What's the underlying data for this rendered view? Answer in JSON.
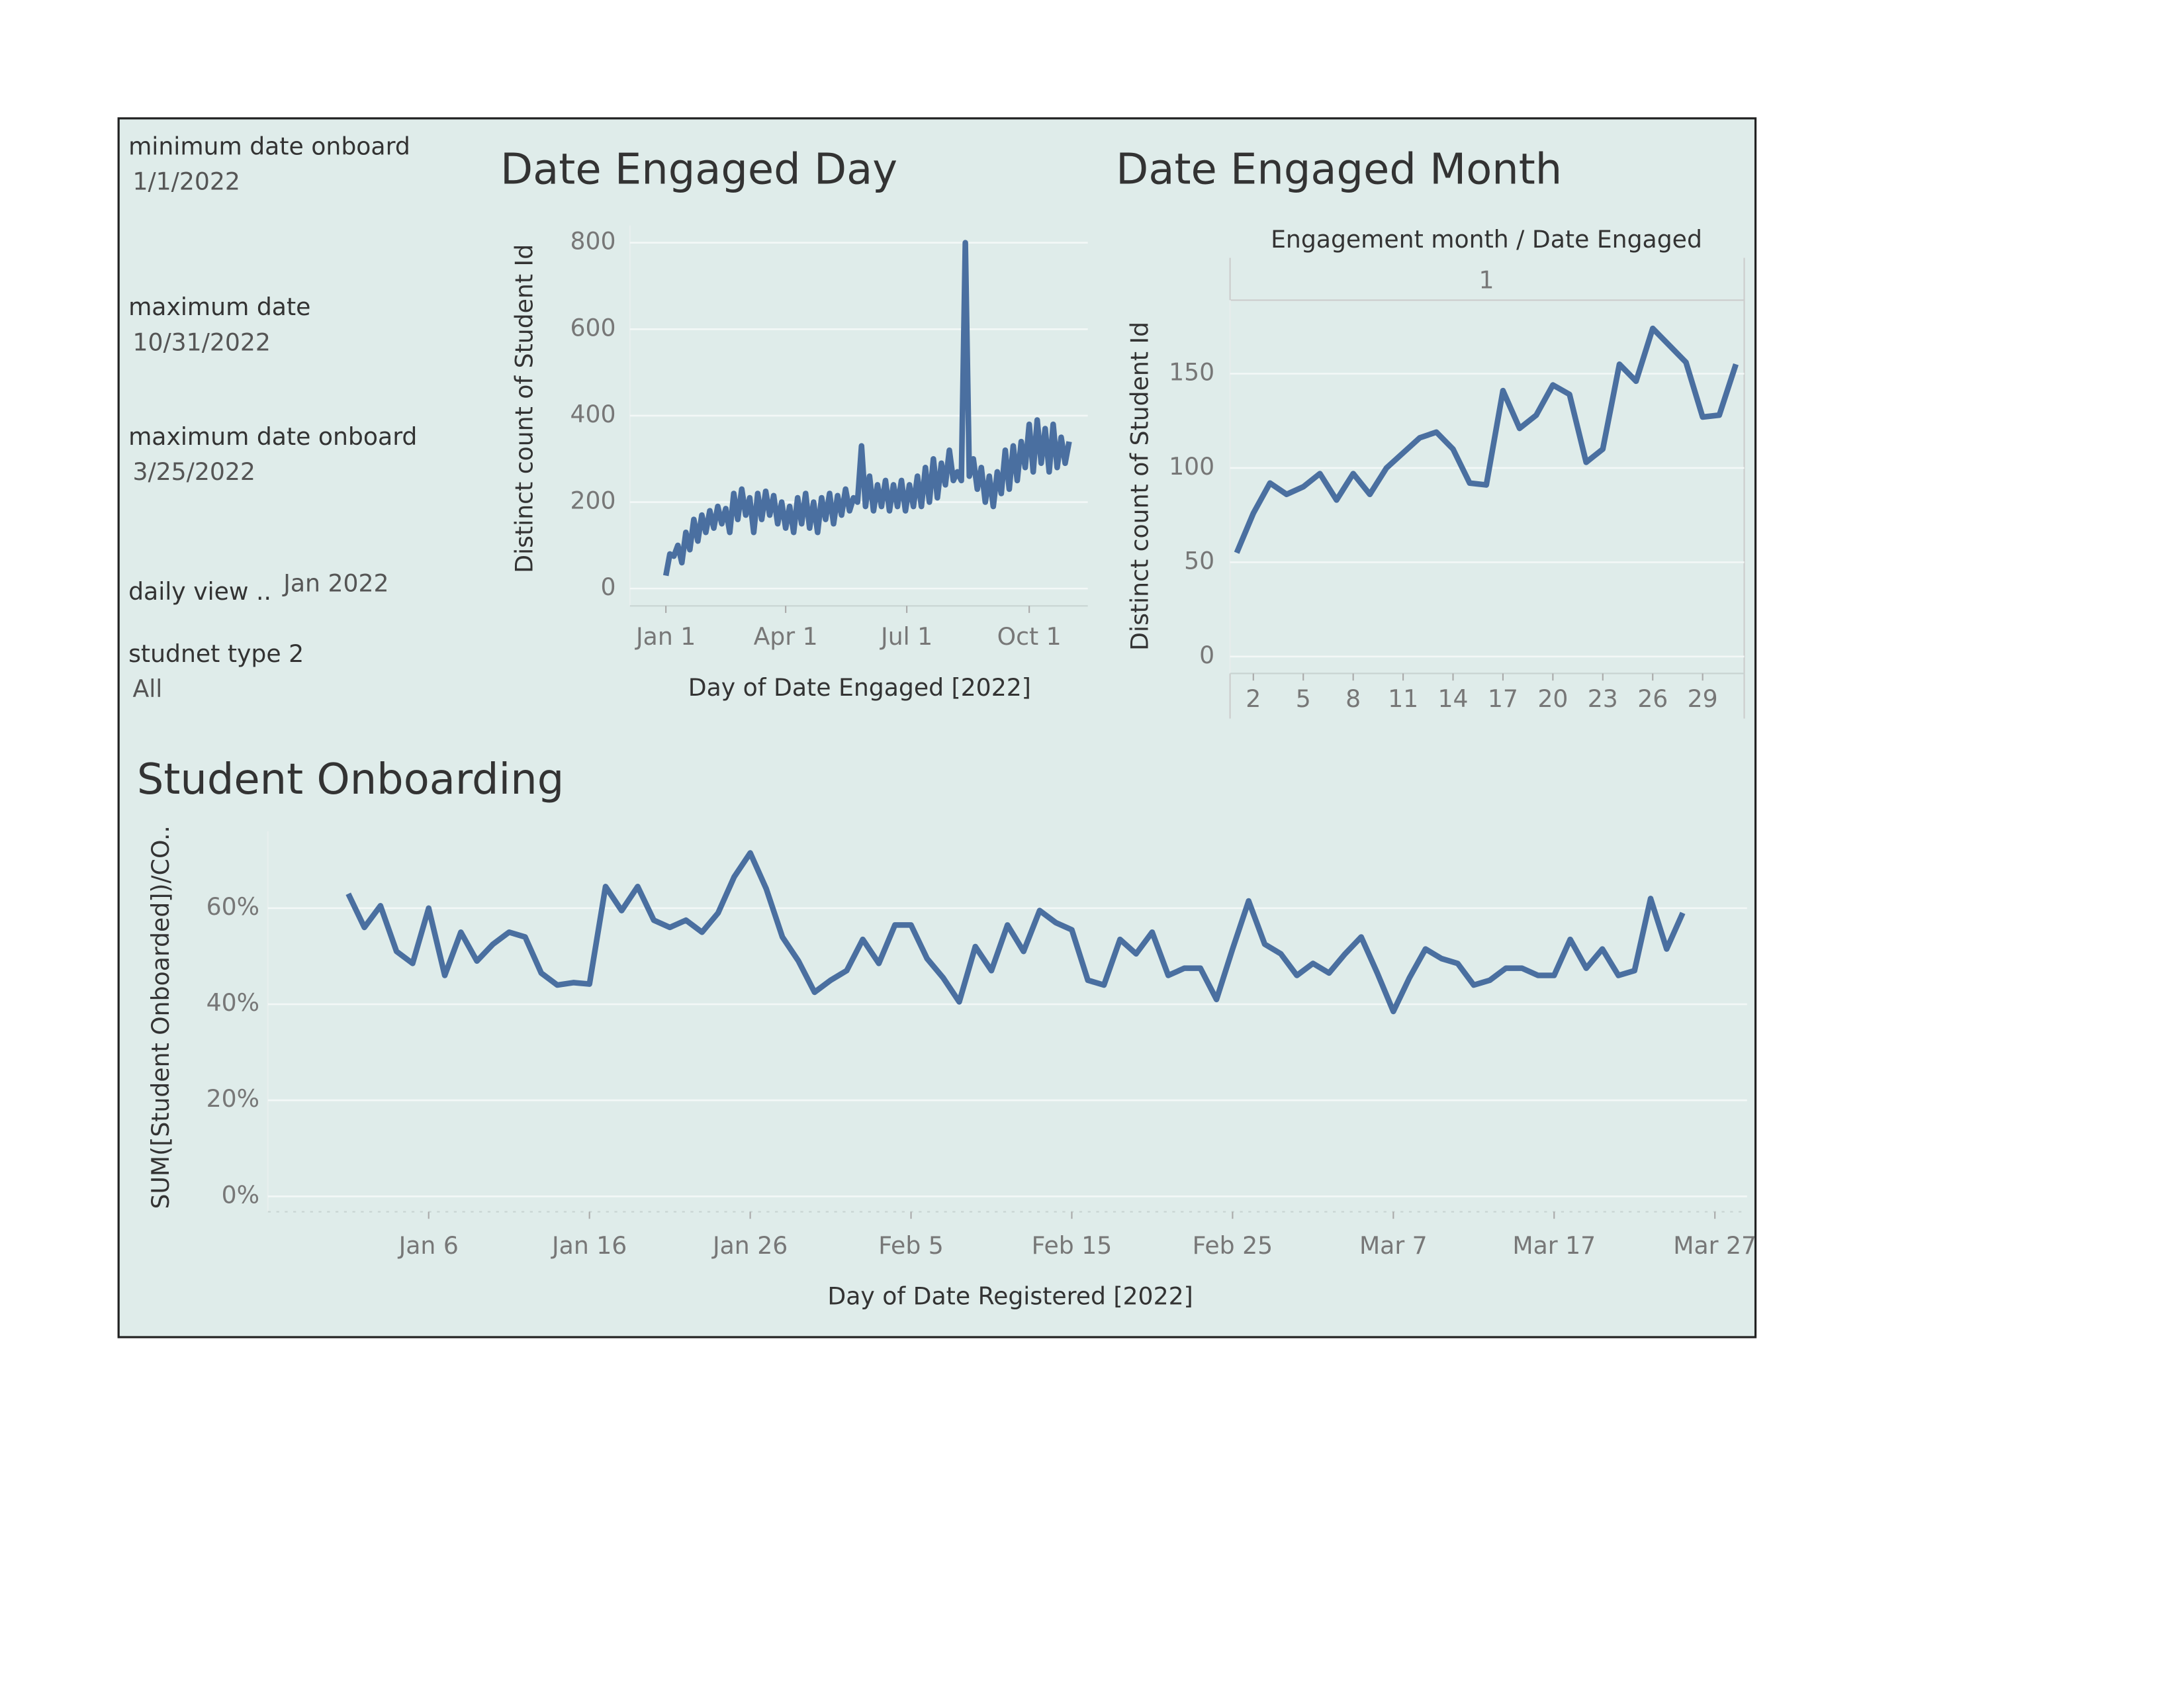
{
  "filters": [
    {
      "label": "minimum date onboard",
      "value": "1/1/2022"
    },
    {
      "label": "maximum date",
      "value": "10/31/2022"
    },
    {
      "label": "maximum date onboard",
      "value": "3/25/2022"
    },
    {
      "label": "daily view ..",
      "value": "Jan 2022"
    },
    {
      "label": "studnet type 2",
      "value": "All"
    }
  ],
  "chart_data": [
    {
      "type": "line",
      "title": "Date Engaged Day",
      "x_label": "Day of Date Engaged [2022]",
      "y_label": "Distinct count of Student Id",
      "color": "#4a6fa0",
      "grid": true,
      "x": [
        "2022-01-01",
        "2022-01-04",
        "2022-01-07",
        "2022-01-10",
        "2022-01-13",
        "2022-01-16",
        "2022-01-19",
        "2022-01-22",
        "2022-01-25",
        "2022-01-28",
        "2022-01-31",
        "2022-02-03",
        "2022-02-06",
        "2022-02-09",
        "2022-02-12",
        "2022-02-15",
        "2022-02-18",
        "2022-02-21",
        "2022-02-24",
        "2022-02-27",
        "2022-03-02",
        "2022-03-05",
        "2022-03-08",
        "2022-03-11",
        "2022-03-14",
        "2022-03-17",
        "2022-03-20",
        "2022-03-23",
        "2022-03-26",
        "2022-03-29",
        "2022-04-01",
        "2022-04-04",
        "2022-04-07",
        "2022-04-10",
        "2022-04-13",
        "2022-04-16",
        "2022-04-19",
        "2022-04-22",
        "2022-04-25",
        "2022-04-28",
        "2022-05-01",
        "2022-05-04",
        "2022-05-07",
        "2022-05-10",
        "2022-05-13",
        "2022-05-16",
        "2022-05-19",
        "2022-05-22",
        "2022-05-25",
        "2022-05-28",
        "2022-05-31",
        "2022-06-03",
        "2022-06-06",
        "2022-06-09",
        "2022-06-12",
        "2022-06-15",
        "2022-06-18",
        "2022-06-21",
        "2022-06-24",
        "2022-06-27",
        "2022-06-30",
        "2022-07-03",
        "2022-07-06",
        "2022-07-09",
        "2022-07-12",
        "2022-07-15",
        "2022-07-18",
        "2022-07-21",
        "2022-07-24",
        "2022-07-27",
        "2022-07-30",
        "2022-08-02",
        "2022-08-05",
        "2022-08-08",
        "2022-08-11",
        "2022-08-14",
        "2022-08-17",
        "2022-08-20",
        "2022-08-23",
        "2022-08-26",
        "2022-08-29",
        "2022-09-01",
        "2022-09-04",
        "2022-09-07",
        "2022-09-10",
        "2022-09-13",
        "2022-09-16",
        "2022-09-19",
        "2022-09-22",
        "2022-09-25",
        "2022-09-28",
        "2022-10-01",
        "2022-10-04",
        "2022-10-07",
        "2022-10-10",
        "2022-10-13",
        "2022-10-16",
        "2022-10-19",
        "2022-10-22",
        "2022-10-25",
        "2022-10-28",
        "2022-10-31"
      ],
      "values": [
        30,
        80,
        75,
        100,
        60,
        130,
        90,
        160,
        110,
        170,
        130,
        180,
        140,
        190,
        150,
        185,
        130,
        220,
        160,
        230,
        170,
        210,
        130,
        220,
        160,
        225,
        170,
        215,
        150,
        200,
        140,
        190,
        130,
        210,
        150,
        220,
        140,
        200,
        130,
        210,
        160,
        220,
        150,
        215,
        170,
        230,
        180,
        210,
        200,
        330,
        190,
        260,
        180,
        240,
        190,
        250,
        180,
        240,
        190,
        250,
        180,
        240,
        190,
        260,
        190,
        280,
        200,
        300,
        210,
        290,
        240,
        320,
        250,
        270,
        250,
        800,
        260,
        300,
        230,
        280,
        200,
        260,
        190,
        270,
        220,
        320,
        230,
        330,
        250,
        340,
        280,
        380,
        270,
        390,
        290,
        370,
        270,
        380,
        280,
        350,
        290,
        340
      ],
      "xlim": [
        "2021-12-05",
        "2022-11-14"
      ],
      "xticks": [
        {
          "value": "2022-01-01",
          "label": "Jan 1"
        },
        {
          "value": "2022-04-01",
          "label": "Apr 1"
        },
        {
          "value": "2022-07-01",
          "label": "Jul 1"
        },
        {
          "value": "2022-10-01",
          "label": "Oct 1"
        }
      ],
      "ylim": [
        -40,
        840
      ],
      "yticks": [
        0,
        200,
        400,
        600,
        800
      ]
    },
    {
      "type": "line",
      "title": "Date Engaged Month",
      "header": "Engagement  month  /  Date Engaged",
      "panel": "1",
      "y_label": "Distinct count of Student Id",
      "color": "#4a6fa0",
      "grid": true,
      "x": [
        1,
        2,
        3,
        4,
        5,
        6,
        7,
        8,
        9,
        10,
        11,
        12,
        13,
        14,
        15,
        16,
        17,
        18,
        19,
        20,
        21,
        22,
        23,
        24,
        25,
        26,
        27,
        28,
        29,
        30,
        31
      ],
      "values": [
        55,
        76,
        92,
        86,
        90,
        97,
        83,
        97,
        86,
        100,
        108,
        116,
        119,
        110,
        92,
        91,
        141,
        121,
        128,
        144,
        139,
        103,
        110,
        155,
        146,
        174,
        165,
        156,
        127,
        128,
        155
      ],
      "xlim": [
        0.6,
        31.5
      ],
      "xticks": [
        2,
        5,
        8,
        11,
        14,
        17,
        20,
        23,
        26,
        29
      ],
      "ylim": [
        -9,
        189
      ],
      "yticks": [
        0,
        50,
        100,
        150
      ]
    },
    {
      "type": "line",
      "title": "Student Onboarding",
      "x_label": "Day of Date Registered [2022]",
      "y_label": "SUM([Student Onboarded])/CO..",
      "color": "#4a6fa0",
      "grid": true,
      "x": [
        "2022-01-01",
        "2022-01-02",
        "2022-01-03",
        "2022-01-04",
        "2022-01-05",
        "2022-01-06",
        "2022-01-07",
        "2022-01-08",
        "2022-01-09",
        "2022-01-10",
        "2022-01-11",
        "2022-01-12",
        "2022-01-13",
        "2022-01-14",
        "2022-01-15",
        "2022-01-16",
        "2022-01-17",
        "2022-01-18",
        "2022-01-19",
        "2022-01-20",
        "2022-01-21",
        "2022-01-22",
        "2022-01-23",
        "2022-01-24",
        "2022-01-25",
        "2022-01-26",
        "2022-01-27",
        "2022-01-28",
        "2022-01-29",
        "2022-01-30",
        "2022-01-31",
        "2022-02-01",
        "2022-02-02",
        "2022-02-03",
        "2022-02-04",
        "2022-02-05",
        "2022-02-06",
        "2022-02-07",
        "2022-02-08",
        "2022-02-09",
        "2022-02-10",
        "2022-02-11",
        "2022-02-12",
        "2022-02-13",
        "2022-02-14",
        "2022-02-15",
        "2022-02-16",
        "2022-02-17",
        "2022-02-18",
        "2022-02-19",
        "2022-02-20",
        "2022-02-21",
        "2022-02-22",
        "2022-02-23",
        "2022-02-24",
        "2022-02-25",
        "2022-02-26",
        "2022-02-27",
        "2022-02-28",
        "2022-03-01",
        "2022-03-02",
        "2022-03-03",
        "2022-03-04",
        "2022-03-05",
        "2022-03-06",
        "2022-03-07",
        "2022-03-08",
        "2022-03-09",
        "2022-03-10",
        "2022-03-11",
        "2022-03-12",
        "2022-03-13",
        "2022-03-14",
        "2022-03-15",
        "2022-03-16",
        "2022-03-17",
        "2022-03-18",
        "2022-03-19",
        "2022-03-20",
        "2022-03-21",
        "2022-03-22",
        "2022-03-23",
        "2022-03-24",
        "2022-03-25"
      ],
      "values": [
        63,
        56,
        60.5,
        51,
        48.5,
        60,
        46,
        55,
        49,
        52.5,
        55,
        54,
        46.5,
        44,
        44.5,
        44.2,
        64.5,
        59.5,
        64.5,
        57.5,
        56,
        57.5,
        55,
        59,
        66.5,
        71.5,
        64,
        54,
        49,
        42.5,
        45,
        47,
        53.5,
        48.5,
        56.5,
        56.5,
        49.5,
        45.5,
        40.5,
        52,
        47,
        56.5,
        51,
        59.5,
        57,
        55.5,
        45,
        44,
        53.5,
        50.5,
        55,
        46,
        47.5,
        47.5,
        41,
        51.5,
        61.5,
        52.5,
        50.5,
        46,
        48.5,
        46.5,
        50.5,
        54,
        46.5,
        38.5,
        45.5,
        51.5,
        49.5,
        48.5,
        44,
        45,
        47.5,
        47.5,
        46,
        46,
        53.5,
        47.5,
        51.5,
        46,
        47,
        62,
        51.5,
        59
      ],
      "xlim": [
        "2021-12-27",
        "2022-03-29"
      ],
      "xticks": [
        {
          "value": "2022-01-06",
          "label": "Jan 6"
        },
        {
          "value": "2022-01-16",
          "label": "Jan 16"
        },
        {
          "value": "2022-01-26",
          "label": "Jan 26"
        },
        {
          "value": "2022-02-05",
          "label": "Feb 5"
        },
        {
          "value": "2022-02-15",
          "label": "Feb 15"
        },
        {
          "value": "2022-02-25",
          "label": "Feb 25"
        },
        {
          "value": "2022-03-07",
          "label": "Mar 7"
        },
        {
          "value": "2022-03-17",
          "label": "Mar 17"
        },
        {
          "value": "2022-03-27",
          "label": "Mar 27"
        }
      ],
      "ylim": [
        -3.2,
        76
      ],
      "yticks": [
        {
          "value": 0,
          "label": "0%"
        },
        {
          "value": 20,
          "label": "20%"
        },
        {
          "value": 40,
          "label": "40%"
        },
        {
          "value": 60,
          "label": "60%"
        }
      ]
    }
  ]
}
